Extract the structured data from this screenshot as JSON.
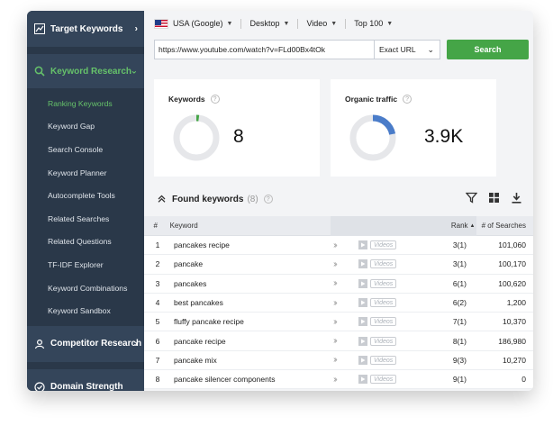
{
  "sidebar": {
    "target_keywords": "Target Keywords",
    "keyword_research": "Keyword Research",
    "items": [
      {
        "label": "Ranking Keywords"
      },
      {
        "label": "Keyword Gap"
      },
      {
        "label": "Search Console"
      },
      {
        "label": "Keyword Planner"
      },
      {
        "label": "Autocomplete Tools"
      },
      {
        "label": "Related Searches"
      },
      {
        "label": "Related Questions"
      },
      {
        "label": "TF-IDF Explorer"
      },
      {
        "label": "Keyword Combinations"
      },
      {
        "label": "Keyword Sandbox"
      }
    ],
    "competitor_research": "Competitor Research",
    "domain_strength": "Domain Strength"
  },
  "filters": {
    "country": "USA (Google)",
    "device": "Desktop",
    "type": "Video",
    "top": "Top 100"
  },
  "search": {
    "url": "https://www.youtube.com/watch?v=FLd00Bx4tOk",
    "match": "Exact URL",
    "button": "Search"
  },
  "cards": {
    "keywords": {
      "title": "Keywords",
      "value": "8",
      "fraction": 0.02
    },
    "traffic": {
      "title": "Organic traffic",
      "value": "3.9K",
      "fraction": 0.22
    }
  },
  "found": {
    "title": "Found keywords",
    "count": "(8)"
  },
  "table": {
    "headers": {
      "num": "#",
      "keyword": "Keyword",
      "rank": "Rank",
      "searches": "# of Searches"
    },
    "video_tag": "Videos",
    "rows": [
      {
        "num": "1",
        "keyword": "pancakes recipe",
        "rank": "3(1)",
        "searches": "101,060"
      },
      {
        "num": "2",
        "keyword": "pancake",
        "rank": "3(1)",
        "searches": "100,170"
      },
      {
        "num": "3",
        "keyword": "pancakes",
        "rank": "6(1)",
        "searches": "100,620"
      },
      {
        "num": "4",
        "keyword": "best pancakes",
        "rank": "6(2)",
        "searches": "1,200"
      },
      {
        "num": "5",
        "keyword": "fluffy pancake recipe",
        "rank": "7(1)",
        "searches": "10,370"
      },
      {
        "num": "6",
        "keyword": "pancake recipe",
        "rank": "8(1)",
        "searches": "186,980"
      },
      {
        "num": "7",
        "keyword": "pancake mix",
        "rank": "9(3)",
        "searches": "10,270"
      },
      {
        "num": "8",
        "keyword": "pancake silencer components",
        "rank": "9(1)",
        "searches": "0"
      }
    ]
  }
}
